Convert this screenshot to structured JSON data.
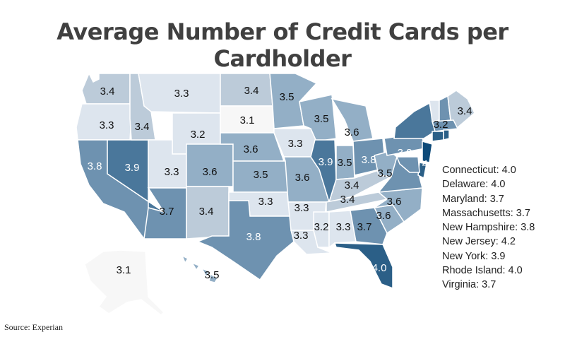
{
  "title": "Average Number of Credit Cards per Cardholder",
  "source": "Source: Experian",
  "colors": {
    "background": "#ffffff",
    "title": "#404040",
    "border": "#ffffff",
    "scale": [
      "#f7f7f7",
      "#dde5ee",
      "#bccbd9",
      "#93afc6",
      "#6e92b0",
      "#4a779b",
      "#2b5f87",
      "#0d4a79"
    ]
  },
  "chart_data": {
    "type": "choropleth",
    "region": "United States",
    "metric_unit": "cards per cardholder",
    "values": [
      {
        "state": "WA",
        "value": 3.4,
        "label": "3.4"
      },
      {
        "state": "OR",
        "value": 3.3,
        "label": "3.3"
      },
      {
        "state": "CA",
        "value": 3.8,
        "label": "3.8"
      },
      {
        "state": "NV",
        "value": 3.9,
        "label": "3.9"
      },
      {
        "state": "ID",
        "value": 3.4,
        "label": "3.4"
      },
      {
        "state": "MT",
        "value": 3.3,
        "label": "3.3"
      },
      {
        "state": "WY",
        "value": 3.2,
        "label": "3.2"
      },
      {
        "state": "UT",
        "value": 3.3,
        "label": "3.3"
      },
      {
        "state": "AZ",
        "value": 3.7,
        "label": "3.7"
      },
      {
        "state": "CO",
        "value": 3.6,
        "label": "3.6"
      },
      {
        "state": "NM",
        "value": 3.4,
        "label": "3.4"
      },
      {
        "state": "ND",
        "value": 3.4,
        "label": "3.4"
      },
      {
        "state": "SD",
        "value": 3.1,
        "label": "3.1"
      },
      {
        "state": "NE",
        "value": 3.6,
        "label": "3.6"
      },
      {
        "state": "KS",
        "value": 3.5,
        "label": "3.5"
      },
      {
        "state": "OK",
        "value": 3.3,
        "label": "3.3"
      },
      {
        "state": "TX",
        "value": 3.8,
        "label": "3.8"
      },
      {
        "state": "MN",
        "value": 3.5,
        "label": "3.5"
      },
      {
        "state": "IA",
        "value": 3.3,
        "label": "3.3"
      },
      {
        "state": "MO",
        "value": 3.6,
        "label": "3.6"
      },
      {
        "state": "AR",
        "value": 3.3,
        "label": "3.3"
      },
      {
        "state": "LA",
        "value": 3.3,
        "label": "3.3"
      },
      {
        "state": "WI",
        "value": 3.5,
        "label": "3.5"
      },
      {
        "state": "IL",
        "value": 3.9,
        "label": "3.9"
      },
      {
        "state": "MI",
        "value": 3.6,
        "label": "3.6"
      },
      {
        "state": "IN",
        "value": 3.5,
        "label": "3.5"
      },
      {
        "state": "OH",
        "value": 3.8,
        "label": "3.8"
      },
      {
        "state": "KY",
        "value": 3.4,
        "label": "3.4"
      },
      {
        "state": "TN",
        "value": 3.4,
        "label": "3.4"
      },
      {
        "state": "MS",
        "value": 3.2,
        "label": "3.2"
      },
      {
        "state": "AL",
        "value": 3.3,
        "label": "3.3"
      },
      {
        "state": "GA",
        "value": 3.7,
        "label": "3.7"
      },
      {
        "state": "FL",
        "value": 4.0,
        "label": "4.0"
      },
      {
        "state": "SC",
        "value": 3.6,
        "label": "3.6"
      },
      {
        "state": "NC",
        "value": 3.6,
        "label": "3.6"
      },
      {
        "state": "VA",
        "value": 3.7,
        "label": ""
      },
      {
        "state": "WV",
        "value": 3.5,
        "label": "3.5"
      },
      {
        "state": "PA",
        "value": 3.8,
        "label": "3.8"
      },
      {
        "state": "NY",
        "value": 3.9,
        "label": ""
      },
      {
        "state": "VT",
        "value": 3.2,
        "label": "3.2"
      },
      {
        "state": "NH",
        "value": 3.8,
        "label": ""
      },
      {
        "state": "ME",
        "value": 3.4,
        "label": "3.4"
      },
      {
        "state": "MA",
        "value": 3.7,
        "label": ""
      },
      {
        "state": "CT",
        "value": 4.0,
        "label": "4.0"
      },
      {
        "state": "RI",
        "value": 4.0,
        "label": ""
      },
      {
        "state": "NJ",
        "value": 4.2,
        "label": "4.2"
      },
      {
        "state": "DE",
        "value": 4.0,
        "label": ""
      },
      {
        "state": "MD",
        "value": 3.7,
        "label": ""
      },
      {
        "state": "AK",
        "value": 3.1,
        "label": "3.1"
      },
      {
        "state": "HI",
        "value": 3.5,
        "label": "3.5"
      }
    ],
    "legend": [
      "Connecticut: 4.0",
      "Delaware: 4.0",
      "Maryland: 3.7",
      "Massachusetts: 3.7",
      "New Hampshire: 3.8",
      "New Jersey: 4.2",
      "New York: 3.9",
      "Rhode Island: 4.0",
      "Virginia: 3.7"
    ]
  }
}
